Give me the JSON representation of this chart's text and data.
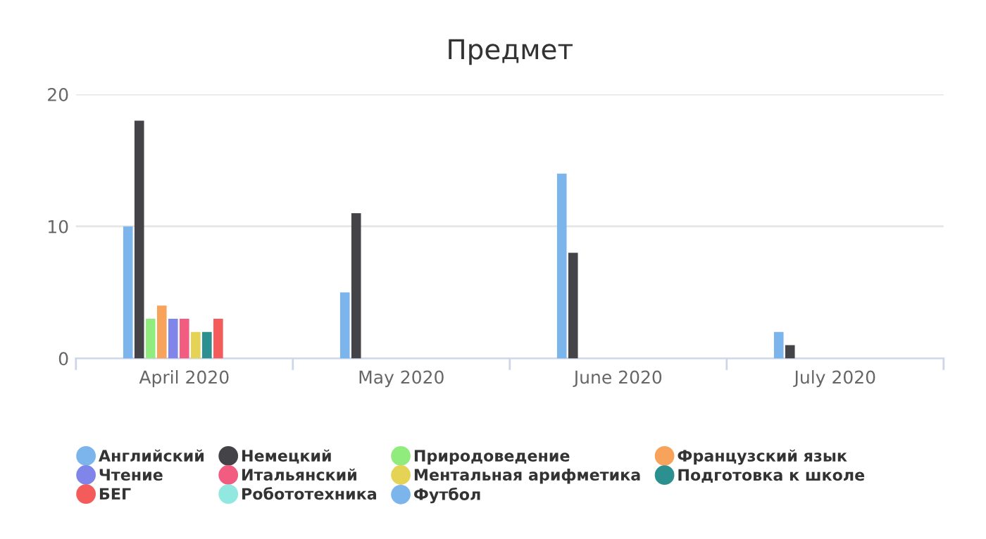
{
  "chart_data": {
    "type": "bar",
    "title": "Предмет",
    "categories": [
      "April 2020",
      "May 2020",
      "June 2020",
      "July 2020"
    ],
    "series": [
      {
        "name": "Английский",
        "color": "#7cb5ec",
        "values": [
          10,
          5,
          14,
          2
        ]
      },
      {
        "name": "Немецкий",
        "color": "#434348",
        "values": [
          18,
          11,
          8,
          1
        ]
      },
      {
        "name": "Природоведение",
        "color": "#90ed7d",
        "values": [
          3,
          null,
          null,
          null
        ]
      },
      {
        "name": "Французский язык",
        "color": "#f7a35c",
        "values": [
          4,
          null,
          null,
          null
        ]
      },
      {
        "name": "Чтение",
        "color": "#8085e9",
        "values": [
          3,
          null,
          null,
          null
        ]
      },
      {
        "name": "Итальянский",
        "color": "#f15c80",
        "values": [
          3,
          null,
          null,
          null
        ]
      },
      {
        "name": "Ментальная арифметика",
        "color": "#e4d354",
        "values": [
          2,
          null,
          null,
          null
        ]
      },
      {
        "name": "Подготовка к школе",
        "color": "#2b908f",
        "values": [
          2,
          null,
          null,
          null
        ]
      },
      {
        "name": "БЕГ",
        "color": "#f45b5b",
        "values": [
          3,
          null,
          null,
          null
        ]
      },
      {
        "name": "Робототехника",
        "color": "#91e8e1",
        "values": [
          null,
          null,
          null,
          null
        ]
      },
      {
        "name": "Футбол",
        "color": "#7cb5ec",
        "values": [
          null,
          null,
          null,
          null
        ]
      }
    ],
    "ylim": [
      0,
      20
    ],
    "yticks": [
      0,
      10,
      20
    ],
    "grid": "y",
    "legend": "bottom"
  }
}
